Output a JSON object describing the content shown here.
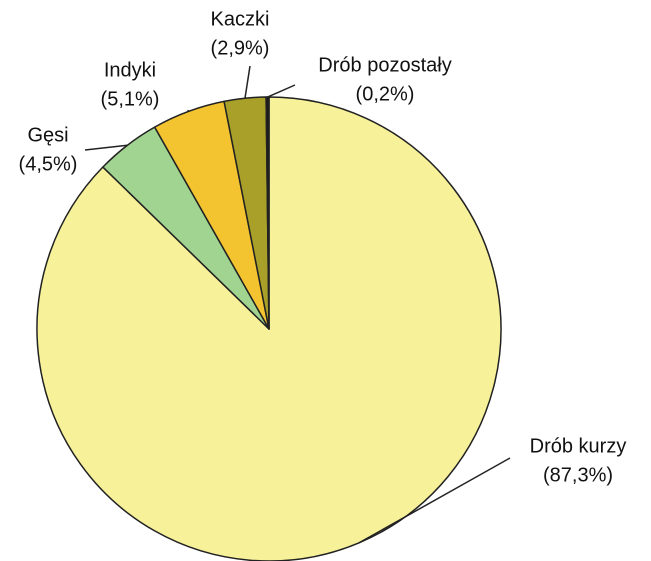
{
  "chart_data": {
    "type": "pie",
    "categories": [
      "Drób kurzy",
      "Gęsi",
      "Indyki",
      "Kaczki",
      "Drób pozostały"
    ],
    "values": [
      87.3,
      4.5,
      5.1,
      2.9,
      0.2
    ],
    "value_labels": [
      "(87,3%)",
      "(4,5%)",
      "(5,1%)",
      "(2,9%)",
      "(0,2%)"
    ],
    "colors": [
      "#f7f199",
      "#a0d490",
      "#f4c430",
      "#a8a028",
      "#1a1a1a"
    ]
  }
}
